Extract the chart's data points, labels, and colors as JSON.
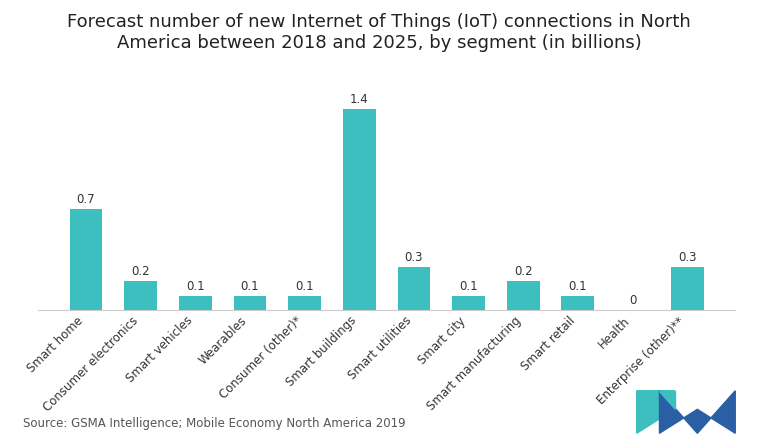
{
  "title": "Forecast number of new Internet of Things (IoT) connections in North\nAmerica between 2018 and 2025, by segment (in billions)",
  "categories": [
    "Smart home",
    "Consumer electronics",
    "Smart vehicles",
    "Wearables",
    "Consumer (other)*",
    "Smart buildings",
    "Smart utilities",
    "Smart city",
    "Smart manufacturing",
    "Smart retail",
    "Health",
    "Enterprise (other)**"
  ],
  "values": [
    0.7,
    0.2,
    0.1,
    0.1,
    0.1,
    1.4,
    0.3,
    0.1,
    0.2,
    0.1,
    0.0,
    0.3
  ],
  "bar_color": "#3dbfbf",
  "background_color": "#ffffff",
  "source_text": "Source: GSMA Intelligence; Mobile Economy North America 2019",
  "ylim": [
    0,
    1.6
  ],
  "title_fontsize": 13,
  "label_fontsize": 8.5,
  "source_fontsize": 8.5,
  "value_fontsize": 8.5,
  "logo_teal": "#3dbfbf",
  "logo_blue": "#2a5fa5"
}
